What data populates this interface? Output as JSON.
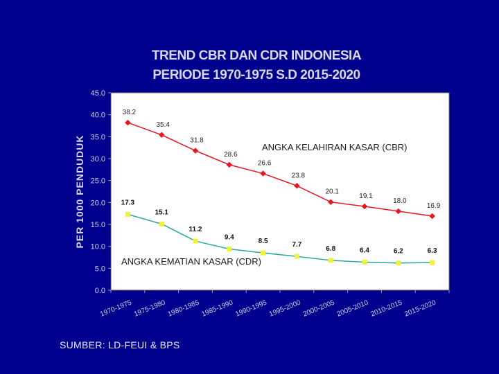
{
  "chart_data": {
    "type": "line",
    "title_line1": "TREND CBR DAN CDR INDONESIA",
    "title_line2": "PERIODE 1970-1975 S.D 2015-2020",
    "ylabel": "PER 1000 PENDUDUK",
    "ylim": [
      0,
      45
    ],
    "yticks": [
      "0.0",
      "5.0",
      "10.0",
      "15.0",
      "20.0",
      "25.0",
      "30.0",
      "35.0",
      "40.0",
      "45.0"
    ],
    "categories": [
      "1970-1975",
      "1975-1980",
      "1980-1985",
      "1985-1990",
      "1990-1995",
      "1995-2000",
      "2000-2005",
      "2005-2010",
      "2010-2015",
      "2015-2020"
    ],
    "series": [
      {
        "name": "ANGKA KELAHIRAN KASAR (CBR)",
        "values": [
          38.2,
          35.4,
          31.8,
          28.6,
          26.6,
          23.8,
          20.1,
          19.1,
          18.0,
          16.9
        ],
        "labels": [
          "38.2",
          "35.4",
          "31.8",
          "28.6",
          "26.6",
          "23.8",
          "20.1",
          "19.1",
          "18.0",
          "16.9"
        ],
        "line_color": "#e8141e",
        "marker_color": "#e8141e"
      },
      {
        "name": "ANGKA KEMATIAN KASAR (CDR)",
        "values": [
          17.3,
          15.1,
          11.2,
          9.4,
          8.5,
          7.7,
          6.8,
          6.4,
          6.2,
          6.3
        ],
        "labels": [
          "17.3",
          "15.1",
          "11.2",
          "9.4",
          "8.5",
          "7.7",
          "6.8",
          "6.4",
          "6.2",
          "6.3"
        ],
        "line_color": "#2aa7a0",
        "marker_color": "#f2f23a"
      }
    ],
    "plot_background": "#ffffff",
    "grid": false
  },
  "source_text": "SUMBER: LD-FEUI & BPS",
  "colors": {
    "background": "#00008e",
    "text": "#e0e0ea"
  }
}
